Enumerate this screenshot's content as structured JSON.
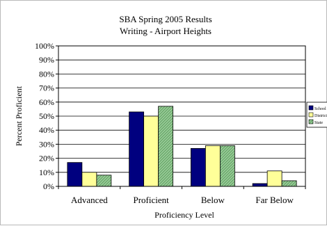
{
  "chart_data": {
    "type": "bar",
    "title": "SBA Spring 2005 Results",
    "subtitle": "Writing - Airport Heights",
    "xlabel": "Proficiency Level",
    "ylabel": "Percent Proficient",
    "categories": [
      "Advanced",
      "Proficient",
      "Below",
      "Far Below"
    ],
    "series": [
      {
        "name": "School",
        "values": [
          17,
          53,
          27,
          2
        ],
        "color": "#00007f",
        "pattern": "solid"
      },
      {
        "name": "District",
        "values": [
          10,
          50,
          29,
          11
        ],
        "color": "#ffff99",
        "pattern": "solid"
      },
      {
        "name": "State",
        "values": [
          8,
          57,
          29,
          4
        ],
        "color": "#99cc99",
        "pattern": "diagonal-hatch"
      }
    ],
    "ylim": [
      0,
      100
    ],
    "y_ticks": [
      "0%",
      "10%",
      "20%",
      "30%",
      "40%",
      "50%",
      "60%",
      "70%",
      "80%",
      "90%",
      "100%"
    ],
    "y_tick_values": [
      0,
      10,
      20,
      30,
      40,
      50,
      60,
      70,
      80,
      90,
      100
    ],
    "grid": true,
    "legend_position": "right",
    "colors": {
      "plot_border": "#000000",
      "gridline": "#000000",
      "bar_outline": "#000000"
    }
  }
}
